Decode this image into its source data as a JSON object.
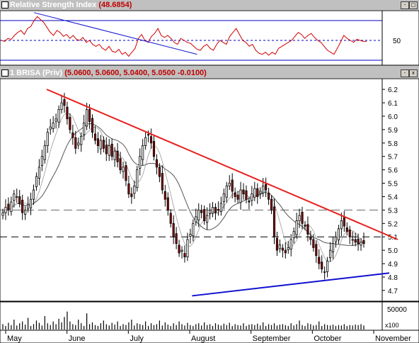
{
  "rsi_panel": {
    "title": "Relative Strength Index",
    "value": "(48.6854)",
    "axis_label": "50"
  },
  "price_panel": {
    "title": "1 BRISA (Priv)",
    "values": "(5.0600, 5.0600, 5.0400, 5.0500 -0.0100)"
  },
  "volume_panel": {
    "axis_label": "50000",
    "multiplier": "x100"
  },
  "months": [
    "May",
    "June",
    "July",
    "August",
    "September",
    "October",
    "November"
  ],
  "window_buttons": [
    "-",
    "□",
    "x"
  ],
  "colors": {
    "bg": "#ffffff",
    "trend_red": "#e8201c",
    "trend_blue": "#1010d0",
    "rsi": "#d00000",
    "candle_up": "#ffffff",
    "candle_down": "#8b0000"
  },
  "chart_data": [
    {
      "type": "line",
      "name": "rsi",
      "title": "Relative Strength Index",
      "ylim": [
        25,
        80
      ],
      "reference_levels": [
        30,
        50,
        70
      ],
      "values": [
        50,
        49,
        52,
        51,
        55,
        58,
        60,
        56,
        62,
        64,
        70,
        74,
        71,
        68,
        63,
        58,
        55,
        60,
        58,
        54,
        56,
        52,
        55,
        51,
        50,
        53,
        48,
        50,
        46,
        44,
        46,
        42,
        40,
        44,
        39,
        38,
        41,
        36,
        38,
        34,
        38,
        42,
        52,
        56,
        50,
        48,
        54,
        57,
        62,
        55,
        53,
        55,
        52,
        48,
        46,
        52,
        50,
        48,
        47,
        44,
        41,
        40,
        44,
        46,
        42,
        40,
        46,
        50,
        48,
        46,
        54,
        58,
        62,
        56,
        50,
        48,
        44,
        46,
        40,
        37,
        36,
        38,
        35,
        38,
        36,
        42,
        44,
        46,
        48,
        50,
        54,
        58,
        56,
        52,
        55,
        57,
        53,
        50,
        48,
        44,
        40,
        38,
        36,
        42,
        48,
        55,
        52,
        50,
        48,
        51,
        50,
        49,
        49
      ]
    },
    {
      "type": "candlestick",
      "name": "BRISA",
      "ylim": [
        4.62,
        6.28
      ],
      "yticks": [
        6.2,
        6.1,
        6.0,
        5.9,
        5.8,
        5.7,
        5.6,
        5.5,
        5.4,
        5.3,
        5.2,
        5.1,
        5.0,
        4.9,
        4.8,
        4.7
      ],
      "x": [
        "May",
        "June",
        "July",
        "August",
        "September",
        "October",
        "November"
      ],
      "closes": [
        5.28,
        5.32,
        5.3,
        5.36,
        5.42,
        5.4,
        5.35,
        5.28,
        5.3,
        5.34,
        5.38,
        5.45,
        5.55,
        5.62,
        5.7,
        5.78,
        5.88,
        5.92,
        5.95,
        5.98,
        6.05,
        6.1,
        6.08,
        5.98,
        5.9,
        5.84,
        5.76,
        5.8,
        5.85,
        5.95,
        6.05,
        5.96,
        5.88,
        5.82,
        5.78,
        5.82,
        5.76,
        5.72,
        5.78,
        5.7,
        5.74,
        5.66,
        5.6,
        5.62,
        5.52,
        5.42,
        5.4,
        5.48,
        5.6,
        5.7,
        5.78,
        5.84,
        5.86,
        5.8,
        5.7,
        5.62,
        5.55,
        5.45,
        5.38,
        5.3,
        5.2,
        5.1,
        5.05,
        4.98,
        5.0,
        4.95,
        5.08,
        5.12,
        5.2,
        5.25,
        5.3,
        5.28,
        5.22,
        5.26,
        5.3,
        5.32,
        5.28,
        5.3,
        5.35,
        5.42,
        5.48,
        5.5,
        5.44,
        5.4,
        5.38,
        5.45,
        5.42,
        5.38,
        5.36,
        5.42,
        5.46,
        5.4,
        5.44,
        5.48,
        5.45,
        5.38,
        5.3,
        5.1,
        5.0,
        5.04,
        5.0,
        4.98,
        5.02,
        5.08,
        5.14,
        5.22,
        5.26,
        5.2,
        5.18,
        5.12,
        5.08,
        5.02,
        4.96,
        4.9,
        4.86,
        4.84,
        4.92,
        5.0,
        5.05,
        5.1,
        5.16,
        5.22,
        5.18,
        5.14,
        5.1,
        5.08,
        5.06,
        5.05,
        5.06,
        5.05
      ],
      "trendlines": [
        {
          "color": "red",
          "from": [
            "May",
            6.2
          ],
          "to": [
            "November",
            5.08
          ]
        },
        {
          "color": "blue",
          "from": [
            "July",
            4.66
          ],
          "to": [
            "November",
            4.83
          ]
        }
      ],
      "reference_levels": [
        5.3,
        5.1
      ]
    },
    {
      "type": "bar",
      "name": "volume",
      "unit": "x100",
      "ytick": 50000,
      "values": [
        12,
        8,
        15,
        10,
        22,
        9,
        14,
        18,
        11,
        26,
        8,
        12,
        20,
        15,
        9,
        30,
        14,
        10,
        18,
        12,
        24,
        16,
        28,
        40,
        18,
        12,
        10,
        22,
        14,
        8,
        36,
        12,
        16,
        10,
        8,
        14,
        20,
        12,
        9,
        15,
        11,
        18,
        8,
        12,
        10,
        16,
        22,
        9,
        14,
        12,
        10,
        18,
        8,
        14,
        10,
        12,
        20,
        9,
        16,
        11,
        8,
        14,
        10,
        18,
        12,
        9,
        15,
        10,
        8,
        12,
        14,
        9,
        16,
        10,
        12,
        8,
        14,
        11,
        9,
        13,
        10,
        15,
        8,
        12,
        10,
        9,
        14,
        8,
        11,
        12,
        10,
        13,
        9,
        16,
        8,
        12,
        10,
        14,
        9,
        11,
        12,
        10,
        8,
        14,
        9,
        12,
        20,
        10,
        8,
        14,
        12,
        9,
        10,
        18,
        8,
        12,
        10,
        9,
        11,
        8,
        10,
        9,
        12,
        8,
        10,
        9,
        11,
        10,
        12,
        9
      ]
    }
  ]
}
